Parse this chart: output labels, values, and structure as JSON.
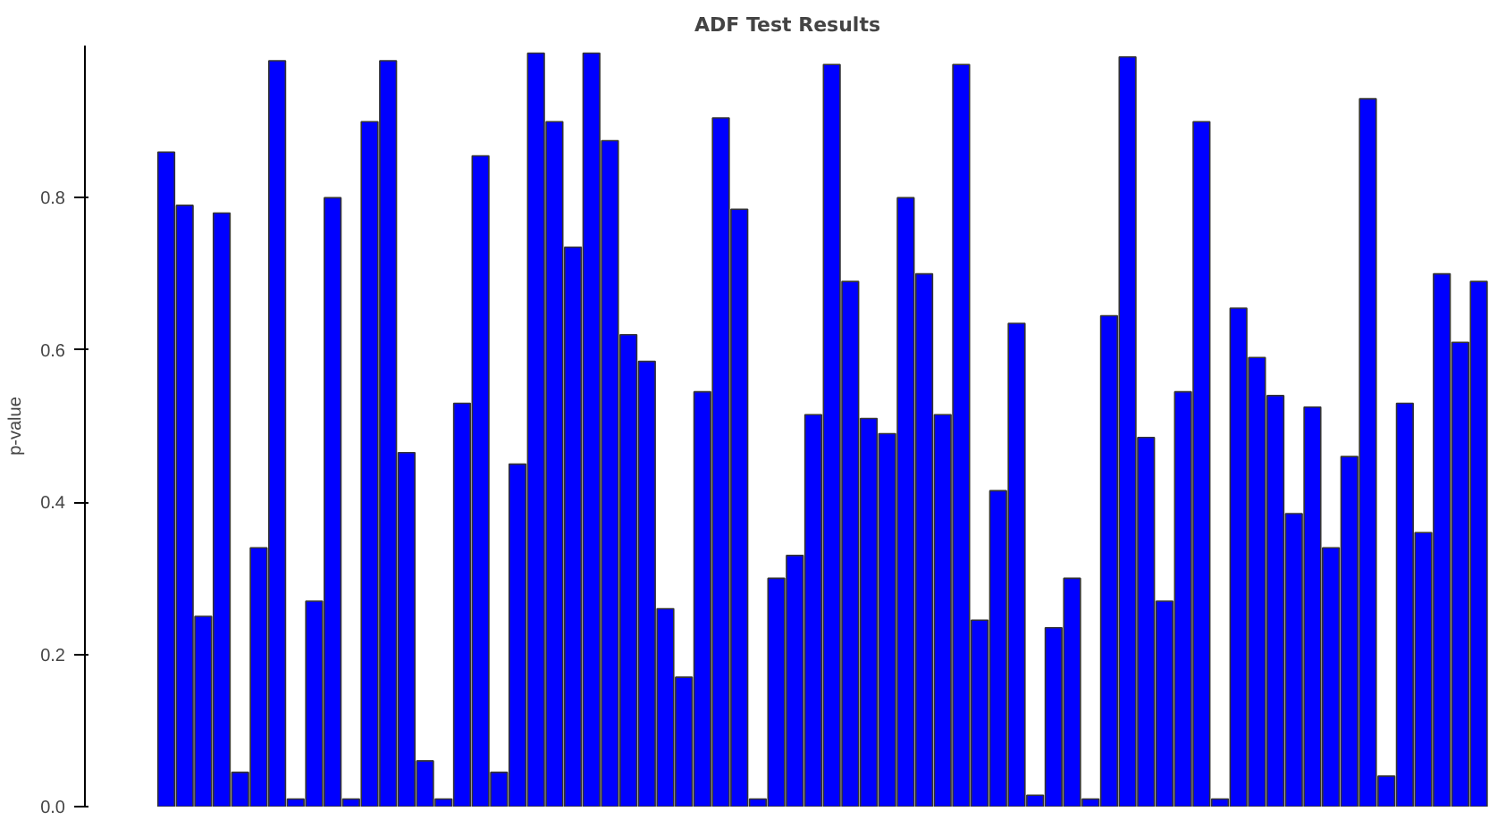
{
  "chart_data": {
    "type": "bar",
    "title": "ADF Test Results",
    "ylabel": "p-value",
    "categories": [
      null,
      null,
      null,
      null,
      null,
      null,
      null,
      null,
      null,
      null,
      null,
      null,
      null,
      null,
      null,
      null,
      null,
      null,
      null,
      null,
      null,
      null,
      null,
      null,
      null,
      null,
      null,
      null,
      null,
      null,
      null,
      null,
      null,
      null,
      null,
      null,
      null,
      null,
      null,
      null,
      null,
      null,
      null,
      null,
      null,
      null,
      null,
      null,
      null,
      null,
      null,
      null,
      null,
      null,
      null,
      null,
      null,
      null,
      null,
      null,
      null,
      null,
      null,
      null,
      null,
      null,
      null,
      null,
      null,
      null,
      null,
      null
    ],
    "values": [
      0.86,
      0.79,
      0.25,
      0.78,
      0.045,
      0.34,
      0.98,
      0.01,
      0.27,
      0.8,
      0.01,
      0.9,
      0.98,
      0.465,
      0.06,
      0.01,
      0.53,
      0.855,
      0.045,
      0.45,
      0.99,
      0.9,
      0.735,
      0.99,
      0.875,
      0.62,
      0.585,
      0.26,
      0.17,
      0.545,
      0.905,
      0.785,
      0.01,
      0.3,
      0.33,
      0.515,
      0.975,
      0.69,
      0.51,
      0.49,
      0.8,
      0.7,
      0.515,
      0.975,
      0.245,
      0.415,
      0.635,
      0.015,
      0.235,
      0.3,
      0.01,
      0.645,
      0.985,
      0.485,
      0.27,
      0.545,
      0.9,
      0.01,
      0.655,
      0.59,
      0.54,
      0.385,
      0.525,
      0.34,
      0.46,
      0.93,
      0.04,
      0.53,
      0.36,
      0.7,
      0.61,
      0.69
    ],
    "color": "#0000ff",
    "ylim": [
      0,
      1.0
    ],
    "yticks": [
      {
        "value": 0,
        "label": "0.0"
      },
      0.2,
      0.4,
      0.6,
      0.8
    ],
    "grid": false,
    "tick_labels": "y"
  }
}
